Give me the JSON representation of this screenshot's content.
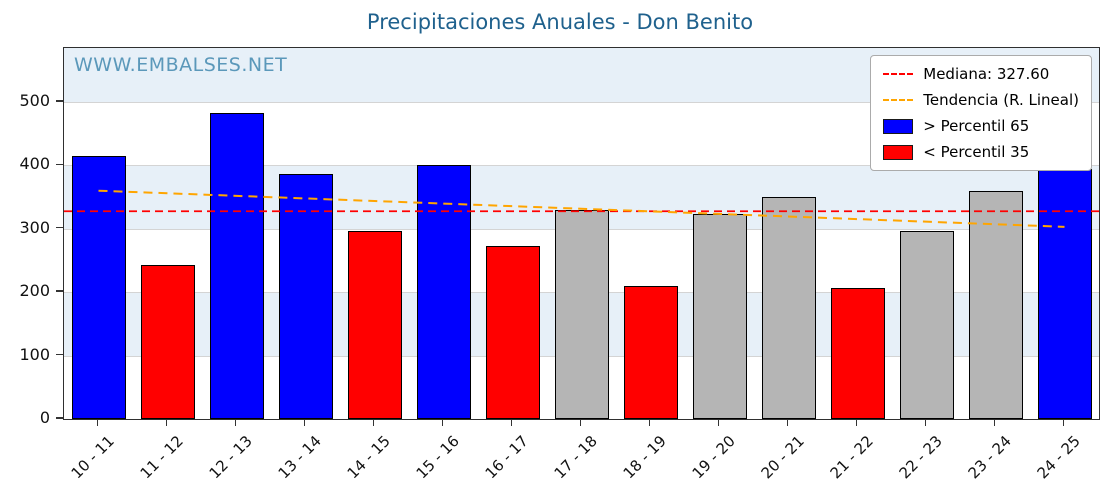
{
  "title": {
    "text": "Precipitaciones Anuales - Don Benito",
    "color": "#1f618d"
  },
  "watermark": {
    "text": "WWW.EMBALSES.NET",
    "color": "#5b98ba"
  },
  "chart_data": {
    "type": "bar",
    "title": "Precipitaciones Anuales - Don Benito",
    "categories": [
      "10 - 11",
      "11 - 12",
      "12 - 13",
      "13 - 14",
      "14 - 15",
      "15 - 16",
      "16 - 17",
      "17 - 18",
      "18 - 19",
      "19 - 20",
      "20 - 21",
      "21 - 22",
      "22 - 23",
      "23 - 24",
      "24 - 25"
    ],
    "values": [
      415,
      243,
      483,
      387,
      297,
      400,
      273,
      330,
      209,
      323,
      350,
      206,
      297,
      359,
      394
    ],
    "bar_colors_key": [
      "above_p65",
      "below_p35",
      "above_p65",
      "above_p65",
      "below_p35",
      "above_p65",
      "below_p35",
      "normal",
      "below_p35",
      "normal",
      "normal",
      "below_p35",
      "normal",
      "normal",
      "above_p65"
    ],
    "colors": {
      "above_p65": "#0000ff",
      "below_p35": "#ff0000",
      "normal": "#b5b5b5",
      "median_line": "#ff0000",
      "trend_line": "#ffa500",
      "band": "#e7f0f8"
    },
    "median": 327.6,
    "trend": {
      "start": 360,
      "end": 303
    },
    "ylim": [
      0,
      585
    ],
    "yticks": [
      0,
      100,
      200,
      300,
      400,
      500
    ],
    "bands": [
      [
        100,
        200
      ],
      [
        300,
        400
      ],
      [
        500,
        585
      ]
    ],
    "grid": true,
    "legend_position": "top-right",
    "legend": [
      {
        "symbol": "dashed-line",
        "color": "#ff0000",
        "label": "Mediana: 327.60"
      },
      {
        "symbol": "dashed-line",
        "color": "#ffa500",
        "label": "Tendencia (R. Lineal)"
      },
      {
        "symbol": "patch",
        "color": "#0000ff",
        "label": "> Percentil 65"
      },
      {
        "symbol": "patch",
        "color": "#ff0000",
        "label": "< Percentil 35"
      }
    ]
  }
}
